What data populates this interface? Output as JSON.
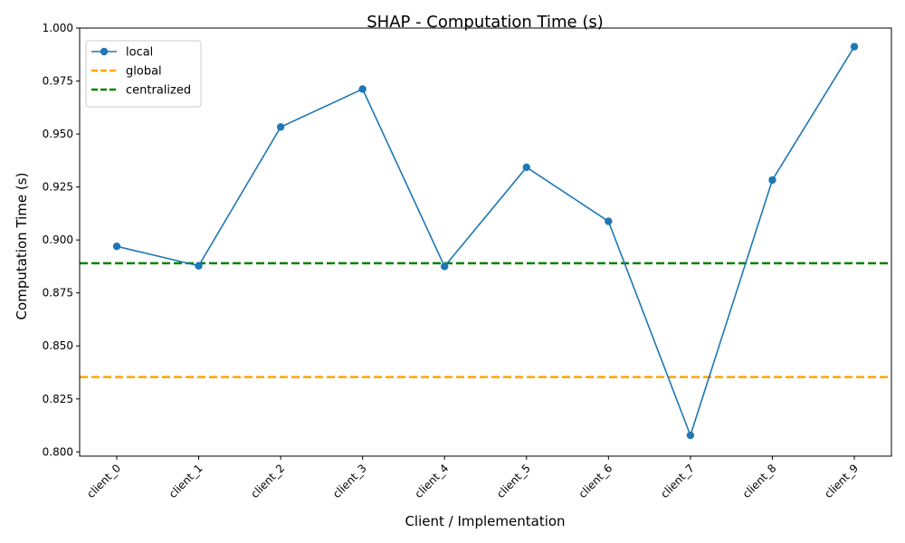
{
  "chart_data": {
    "type": "line",
    "title": "SHAP - Computation Time (s)",
    "xlabel": "Client / Implementation",
    "ylabel": "Computation Time (s)",
    "categories": [
      "client_0",
      "client_1",
      "client_2",
      "client_3",
      "client_4",
      "client_5",
      "client_6",
      "client_7",
      "client_8",
      "client_9"
    ],
    "series": [
      {
        "name": "local",
        "color": "#1f77b4",
        "marker": "circle",
        "values": [
          0.897,
          0.8878,
          0.9533,
          0.9712,
          0.8875,
          0.9343,
          0.9088,
          0.8078,
          0.9283,
          0.9912
        ]
      }
    ],
    "reference_lines": [
      {
        "name": "global",
        "value": 0.8353,
        "color": "#ffa500",
        "style": "dashed"
      },
      {
        "name": "centralized",
        "value": 0.889,
        "color": "#008000",
        "style": "dashed"
      }
    ],
    "yticks": [
      "0.800",
      "0.825",
      "0.850",
      "0.875",
      "0.900",
      "0.925",
      "0.950",
      "0.975",
      "1.000"
    ],
    "ylim": [
      0.798,
      1.0
    ],
    "grid": false,
    "legend_position": "top-left"
  }
}
